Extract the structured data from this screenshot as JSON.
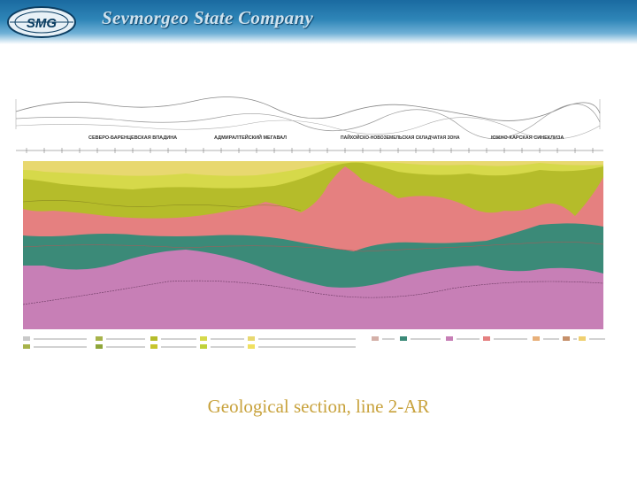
{
  "header": {
    "company_name": "Sevmorgeo State Company",
    "logo_text": "SMG",
    "background_color": "#1a6aa0"
  },
  "figure": {
    "region_labels": [
      "СЕВЕРО-БАРЕНЦЕВСКАЯ ВПАДИНА",
      "АДМИРАЛТЕЙСКИЙ МЕГАВАЛ",
      "ПАЙХОЙСКО-НОВОЗЕМЕЛЬСКАЯ СКЛАДЧАТАЯ ЗОНА",
      "ЮЖНО-КАРСКАЯ СИНЕКЛИЗА"
    ],
    "layer_colors": {
      "upper_green": "#b5bc2a",
      "light_green": "#d6d94a",
      "salmon": "#e58080",
      "teal": "#3b8a78",
      "mauve": "#c77fb6"
    }
  },
  "caption": "Geological section, line 2-AR"
}
